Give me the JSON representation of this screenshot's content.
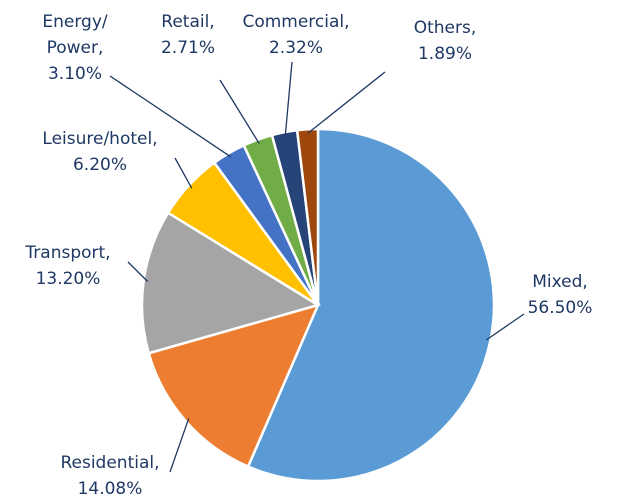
{
  "chart_data": {
    "type": "pie",
    "categories": [
      "Mixed,",
      "Residential,",
      "Transport,",
      "Leisure/hotel,",
      "Energy/ Power,",
      "Retail,",
      "Commercial,",
      "Others,"
    ],
    "values": [
      56.5,
      14.08,
      13.2,
      6.2,
      3.1,
      2.71,
      2.32,
      1.89
    ],
    "value_labels": [
      "56.50%",
      "14.08%",
      "13.20%",
      "6.20%",
      "3.10%",
      "2.71%",
      "2.32%",
      "1.89%"
    ],
    "colors": [
      "#5b9bd5",
      "#ed7d31",
      "#a5a5a5",
      "#ffc000",
      "#4472c4",
      "#70ad47",
      "#264478",
      "#9e480e"
    ]
  }
}
